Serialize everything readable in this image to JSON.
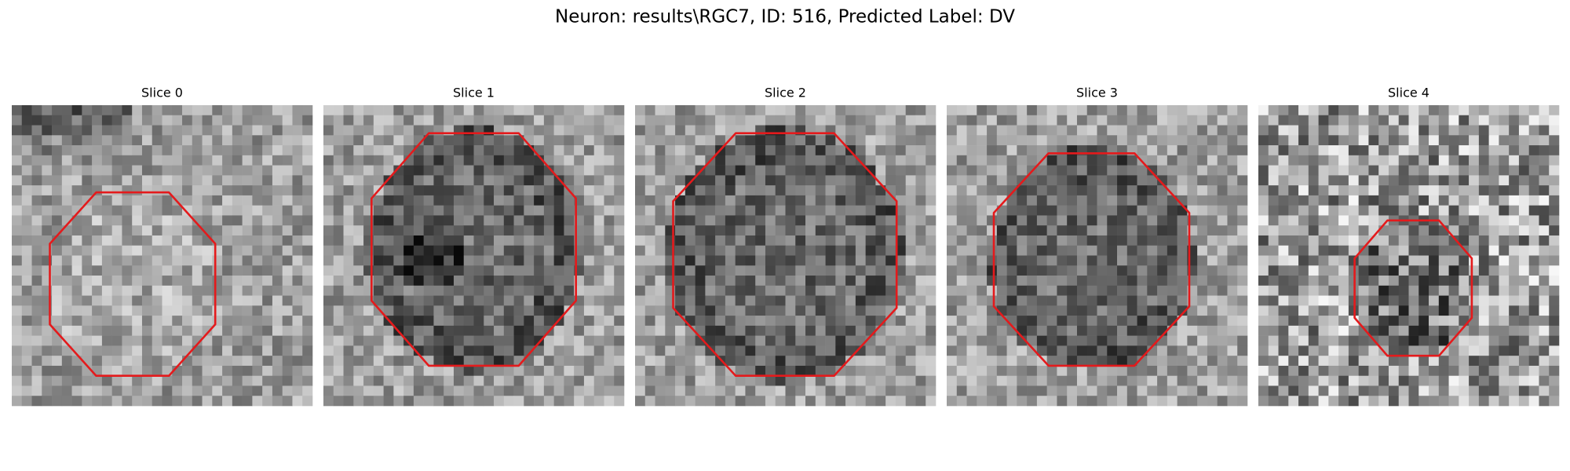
{
  "header": {
    "title": "Neuron: results\\RGC7, ID: 516, Predicted Label: DV"
  },
  "panels": [
    {
      "title": "Slice 0"
    },
    {
      "title": "Slice 1"
    },
    {
      "title": "Slice 2"
    },
    {
      "title": "Slice 3"
    },
    {
      "title": "Slice 4"
    }
  ]
}
